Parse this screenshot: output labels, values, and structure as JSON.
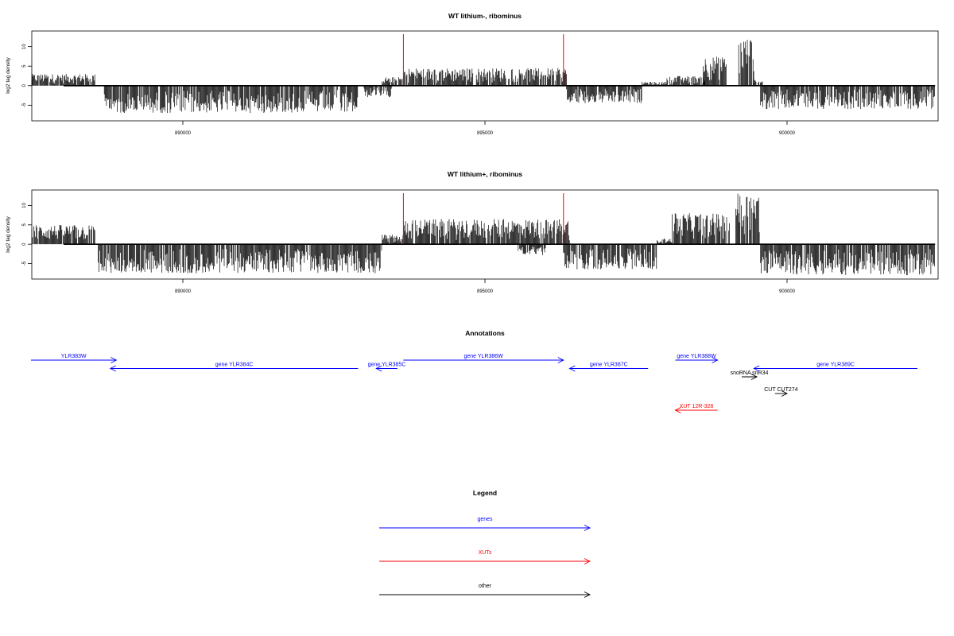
{
  "chart_data": [
    {
      "type": "bar",
      "title": "WT lithium-, ribominus",
      "ylabel": "log2 tag density",
      "xlabel": "",
      "xlim": [
        887500,
        902500
      ],
      "ylim": [
        -9,
        14
      ],
      "xticks": [
        890000,
        895000,
        900000
      ],
      "yticks": [
        10,
        5,
        0,
        -5
      ],
      "grid": false,
      "highlight_x": [
        893650,
        896300
      ],
      "highlight_color": "#ff0000",
      "series": [
        {
          "values_description_omitted": false,
          "segments": [
            {
              "x": [
                887500,
                888550
              ],
              "sign": 1,
              "amp": 3.0
            },
            {
              "x": [
                888700,
                892900
              ],
              "sign": -1,
              "amp": 7.0
            },
            {
              "x": [
                893000,
                893450
              ],
              "sign": -1,
              "amp": 3.0
            },
            {
              "x": [
                893300,
                893650
              ],
              "sign": 1,
              "amp": 2.2
            },
            {
              "x": [
                893650,
                896350
              ],
              "sign": 1,
              "amp": 4.5
            },
            {
              "x": [
                896350,
                897600
              ],
              "sign": -1,
              "amp": 4.5
            },
            {
              "x": [
                897600,
                898000
              ],
              "sign": 1,
              "amp": 1.0
            },
            {
              "x": [
                898000,
                898650
              ],
              "sign": 1,
              "amp": 2.5
            },
            {
              "x": [
                898600,
                899000
              ],
              "sign": 1,
              "amp": 7.5
            },
            {
              "x": [
                899200,
                899450
              ],
              "sign": 1,
              "amp": 12.5
            },
            {
              "x": [
                899450,
                899600
              ],
              "sign": 1,
              "amp": 1.5
            },
            {
              "x": [
                899550,
                902450
              ],
              "sign": -1,
              "amp": 6.0
            }
          ]
        }
      ]
    },
    {
      "type": "bar",
      "title": "WT lithium+, ribominus",
      "ylabel": "log2 tag density",
      "xlabel": "",
      "xlim": [
        887500,
        902500
      ],
      "ylim": [
        -9,
        14
      ],
      "xticks": [
        890000,
        895000,
        900000
      ],
      "yticks": [
        10,
        5,
        0,
        -5
      ],
      "grid": false,
      "highlight_x": [
        893650,
        896300
      ],
      "highlight_color": "#ff0000",
      "series": [
        {
          "segments": [
            {
              "x": [
                887500,
                888550
              ],
              "sign": 1,
              "amp": 5.0
            },
            {
              "x": [
                888600,
                893300
              ],
              "sign": -1,
              "amp": 7.5
            },
            {
              "x": [
                893300,
                893650
              ],
              "sign": 1,
              "amp": 2.5
            },
            {
              "x": [
                893650,
                896400
              ],
              "sign": 1,
              "amp": 6.5
            },
            {
              "x": [
                895550,
                896000
              ],
              "sign": -1,
              "amp": 3.0
            },
            {
              "x": [
                896300,
                897850
              ],
              "sign": -1,
              "amp": 6.5
            },
            {
              "x": [
                897850,
                898100
              ],
              "sign": 1,
              "amp": 1.5
            },
            {
              "x": [
                898100,
                899050
              ],
              "sign": 1,
              "amp": 8.0
            },
            {
              "x": [
                899150,
                899550
              ],
              "sign": 1,
              "amp": 13.5
            },
            {
              "x": [
                899550,
                902450
              ],
              "sign": -1,
              "amp": 8.0
            }
          ]
        }
      ]
    }
  ],
  "annotations": {
    "title": "Annotations",
    "xlim": [
      887500,
      902500
    ],
    "features": [
      {
        "label": "YLR383W",
        "start": 887000,
        "end": 888900,
        "strand": "+",
        "row": 0,
        "color": "#0000ff"
      },
      {
        "label": "gene YLR384C",
        "start": 888800,
        "end": 892900,
        "strand": "-",
        "row": 1,
        "color": "#0000ff"
      },
      {
        "label": "gene YLR385C",
        "start": 893200,
        "end": 893550,
        "strand": "-",
        "row": 1,
        "color": "#0000ff"
      },
      {
        "label": "gene YLR386W",
        "start": 893650,
        "end": 896300,
        "strand": "+",
        "row": 0,
        "color": "#0000ff"
      },
      {
        "label": "gene YLR387C",
        "start": 896400,
        "end": 897700,
        "strand": "-",
        "row": 1,
        "color": "#0000ff"
      },
      {
        "label": "gene YLR388W",
        "start": 898150,
        "end": 898850,
        "strand": "+",
        "row": 0,
        "color": "#0000ff"
      },
      {
        "label": "snoRNA snR34",
        "start": 899250,
        "end": 899500,
        "strand": "+",
        "row": 2,
        "color": "#000000"
      },
      {
        "label": "gene YLR389C",
        "start": 899450,
        "end": 902700,
        "strand": "-",
        "row": 1,
        "color": "#0000ff"
      },
      {
        "label": "CUT CUT274",
        "start": 899800,
        "end": 900000,
        "strand": "+",
        "row": 4,
        "color": "#000000"
      },
      {
        "label": "XUT 12R-328",
        "start": 898150,
        "end": 898850,
        "strand": "-",
        "row": 6,
        "color": "#ff0000"
      }
    ]
  },
  "legend": {
    "title": "Legend",
    "items": [
      {
        "label": "genes",
        "color": "#0000ff"
      },
      {
        "label": "XUTs",
        "color": "#ff0000"
      },
      {
        "label": "other",
        "color": "#000000"
      }
    ]
  }
}
